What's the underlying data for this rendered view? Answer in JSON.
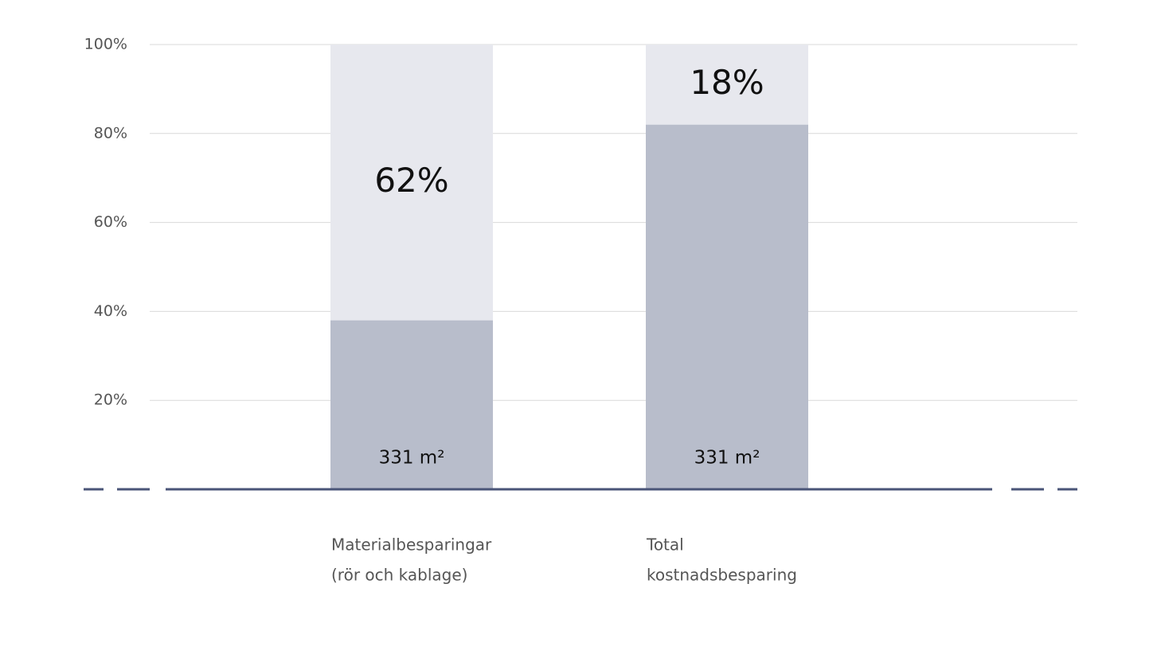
{
  "chart_data": {
    "type": "stacked_bar",
    "categories": [
      [
        "Materialbesparingar",
        "(rör och kablage)"
      ],
      [
        "Total",
        "kostnadsbesparing"
      ]
    ],
    "series": [
      {
        "color": "#b8bdcb",
        "values": [
          38,
          82
        ]
      },
      {
        "color": "#e7e8ee",
        "values": [
          62,
          18
        ],
        "value_labels": [
          "62%",
          "18%"
        ]
      }
    ],
    "annotations": [
      "331 m²",
      "331 m²"
    ],
    "ylim": [
      0,
      100
    ],
    "yticks": [
      {
        "value": 20,
        "label": "20%"
      },
      {
        "value": 40,
        "label": "40%"
      },
      {
        "value": 60,
        "label": "60%"
      },
      {
        "value": 80,
        "label": "80%"
      },
      {
        "value": 100,
        "label": "100%"
      }
    ],
    "grid": true
  }
}
